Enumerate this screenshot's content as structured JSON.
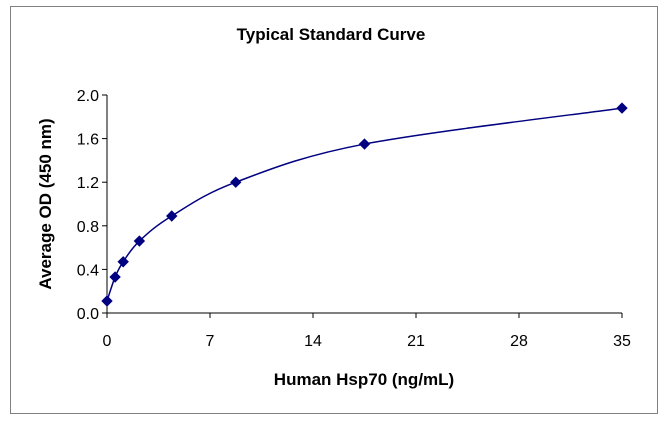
{
  "chart_data": {
    "type": "scatter",
    "title": "Typical Standard Curve",
    "xlabel": "Human Hsp70 (ng/mL)",
    "ylabel": "Average OD (450 nm)",
    "xlim": [
      0,
      35
    ],
    "ylim": [
      0.0,
      2.0
    ],
    "x_ticks": [
      "0",
      "7",
      "14",
      "21",
      "28",
      "35"
    ],
    "y_ticks": [
      "0.0",
      "0.4",
      "0.8",
      "1.2",
      "1.6",
      "2.0"
    ],
    "grid": false,
    "legend": "none",
    "trendline": "smooth",
    "series": [
      {
        "x": [
          0,
          0.55,
          1.1,
          2.2,
          4.4,
          8.75,
          17.5,
          35
        ],
        "y": [
          0.11,
          0.33,
          0.47,
          0.66,
          0.89,
          1.2,
          1.55,
          1.88
        ]
      }
    ],
    "colors": {
      "marker": "#000080",
      "line": "#000080",
      "axis": "#000000"
    }
  }
}
